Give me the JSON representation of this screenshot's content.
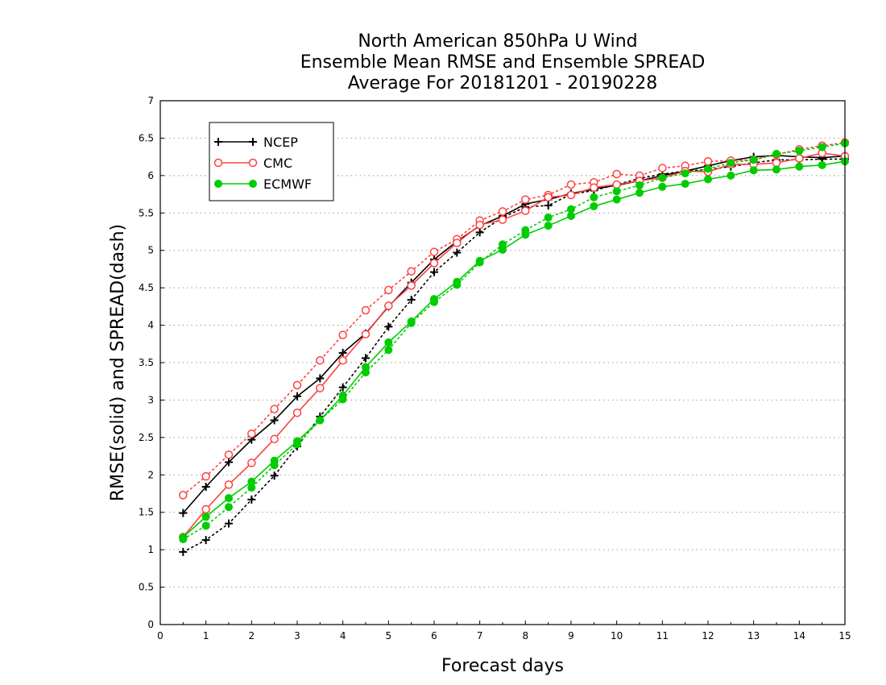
{
  "chart_data": {
    "type": "line",
    "title_lines": [
      "North American 850hPa U Wind",
      "Ensemble Mean RMSE and Ensemble SPREAD",
      "Average For 20181201 - 20190228"
    ],
    "xlabel": "Forecast days",
    "ylabel": "RMSE(solid) and SPREAD(dash)",
    "xlim": [
      0,
      15
    ],
    "ylim": [
      0,
      7
    ],
    "x_ticks": [
      "0",
      "1",
      "2",
      "3",
      "4",
      "5",
      "6",
      "7",
      "8",
      "9",
      "10",
      "11",
      "12",
      "13",
      "14",
      "15"
    ],
    "y_ticks": [
      "0",
      "0.5",
      "1",
      "1.5",
      "2",
      "2.5",
      "3",
      "3.5",
      "4",
      "4.5",
      "5",
      "5.5",
      "6",
      "6.5",
      "7"
    ],
    "grid": "horizontal dotted",
    "legend_position": "top-left",
    "x": [
      0.5,
      1,
      1.5,
      2,
      2.5,
      3,
      3.5,
      4,
      4.5,
      5,
      5.5,
      6,
      6.5,
      7,
      7.5,
      8,
      8.5,
      9,
      9.5,
      10,
      10.5,
      11,
      11.5,
      12,
      12.5,
      13,
      13.5,
      14,
      14.5,
      15
    ],
    "series": [
      {
        "name": "NCEP",
        "color": "#000000",
        "marker": "plus",
        "rmse": [
          1.49,
          1.84,
          2.17,
          2.47,
          2.73,
          3.05,
          3.29,
          3.63,
          3.89,
          4.25,
          4.57,
          4.88,
          5.12,
          5.33,
          5.46,
          5.62,
          5.68,
          5.76,
          5.82,
          5.87,
          5.93,
          6.0,
          6.06,
          6.13,
          6.2,
          6.25,
          6.27,
          6.25,
          6.24,
          6.26
        ],
        "spread": [
          0.97,
          1.13,
          1.35,
          1.67,
          1.99,
          2.38,
          2.78,
          3.17,
          3.56,
          3.98,
          4.34,
          4.71,
          4.97,
          5.24,
          5.44,
          5.58,
          5.6,
          5.75,
          5.8,
          5.88,
          5.96,
          6.02,
          6.06,
          6.08,
          6.12,
          6.17,
          6.21,
          6.21,
          6.22,
          6.22
        ]
      },
      {
        "name": "CMC",
        "color": "#ff4040",
        "marker": "open-circle",
        "rmse": [
          1.17,
          1.54,
          1.87,
          2.16,
          2.48,
          2.83,
          3.16,
          3.53,
          3.88,
          4.26,
          4.53,
          4.83,
          5.1,
          5.34,
          5.41,
          5.53,
          5.71,
          5.74,
          5.84,
          5.88,
          5.93,
          5.97,
          6.06,
          6.05,
          6.15,
          6.15,
          6.17,
          6.23,
          6.3,
          6.26
        ],
        "spread": [
          1.73,
          1.98,
          2.27,
          2.55,
          2.88,
          3.2,
          3.53,
          3.87,
          4.2,
          4.47,
          4.72,
          4.98,
          5.15,
          5.4,
          5.52,
          5.68,
          5.74,
          5.88,
          5.91,
          6.02,
          6.0,
          6.1,
          6.13,
          6.19,
          6.2,
          6.21,
          6.28,
          6.35,
          6.4,
          6.44
        ]
      },
      {
        "name": "ECMWF",
        "color": "#00cc00",
        "marker": "filled-circle",
        "rmse": [
          1.17,
          1.44,
          1.69,
          1.91,
          2.19,
          2.45,
          2.73,
          3.06,
          3.44,
          3.77,
          4.05,
          4.35,
          4.58,
          4.86,
          5.01,
          5.21,
          5.33,
          5.46,
          5.59,
          5.68,
          5.77,
          5.85,
          5.89,
          5.95,
          6.0,
          6.07,
          6.08,
          6.12,
          6.14,
          6.19
        ],
        "spread": [
          1.14,
          1.32,
          1.57,
          1.83,
          2.13,
          2.41,
          2.73,
          3.01,
          3.37,
          3.67,
          4.03,
          4.31,
          4.54,
          4.84,
          5.08,
          5.27,
          5.44,
          5.55,
          5.71,
          5.79,
          5.87,
          5.97,
          6.03,
          6.09,
          6.17,
          6.21,
          6.29,
          6.33,
          6.38,
          6.43
        ]
      }
    ]
  }
}
